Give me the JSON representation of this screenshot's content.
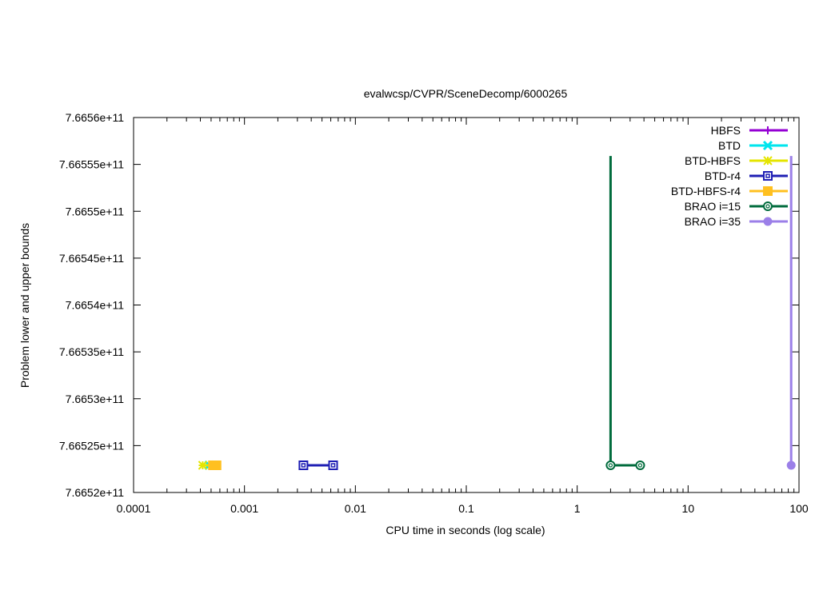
{
  "chart_data": {
    "type": "line",
    "title": "evalwcsp/CVPR/SceneDecomp/6000265",
    "xlabel": "CPU time in seconds (log scale)",
    "ylabel": "Problem lower and upper bounds",
    "xscale": "log",
    "xlim": [
      0.0001,
      100
    ],
    "ylim": [
      766520000000,
      766560000000
    ],
    "xticks": [
      {
        "value": 0.0001,
        "label": "0.0001"
      },
      {
        "value": 0.001,
        "label": "0.001"
      },
      {
        "value": 0.01,
        "label": "0.01"
      },
      {
        "value": 0.1,
        "label": "0.1"
      },
      {
        "value": 1,
        "label": "1"
      },
      {
        "value": 10,
        "label": "10"
      },
      {
        "value": 100,
        "label": "100"
      }
    ],
    "yticks": [
      {
        "value": 766520000000,
        "label": "7.6652e+11"
      },
      {
        "value": 766525000000,
        "label": "7.66525e+11"
      },
      {
        "value": 766530000000,
        "label": "7.6653e+11"
      },
      {
        "value": 766535000000,
        "label": "7.66535e+11"
      },
      {
        "value": 766540000000,
        "label": "7.6654e+11"
      },
      {
        "value": 766545000000,
        "label": "7.66545e+11"
      },
      {
        "value": 766550000000,
        "label": "7.6655e+11"
      },
      {
        "value": 766555000000,
        "label": "7.66555e+11"
      },
      {
        "value": 766560000000,
        "label": "7.6656e+11"
      }
    ],
    "legend_position": "top-right",
    "grid": false,
    "series": [
      {
        "name": "HBFS",
        "color": "#9400d3",
        "marker": "plus",
        "points": [
          [
            0.0034,
            766522900000
          ],
          [
            0.0063,
            766522900000
          ]
        ]
      },
      {
        "name": "BTD",
        "color": "#00e5ee",
        "marker": "cross",
        "points": [
          [
            0.00048,
            766522900000
          ],
          [
            0.00055,
            766522900000
          ]
        ]
      },
      {
        "name": "BTD-HBFS",
        "color": "#e5e500",
        "marker": "star",
        "points": [
          [
            0.00042,
            766522900000
          ],
          [
            0.00055,
            766522900000
          ]
        ]
      },
      {
        "name": "BTD-r4",
        "color": "#1f1fb4",
        "marker": "open-square",
        "points": [
          [
            0.0034,
            766522900000
          ],
          [
            0.0063,
            766522900000
          ]
        ]
      },
      {
        "name": "BTD-HBFS-r4",
        "color": "#ffc020",
        "marker": "filled-square",
        "points": [
          [
            0.00052,
            766522900000
          ],
          [
            0.00056,
            766522900000
          ]
        ]
      },
      {
        "name": "BRAO i=15",
        "color": "#006b3c",
        "marker": "open-circle",
        "points": [
          [
            2.0,
            766555900000
          ],
          [
            2.0,
            766522900000
          ],
          [
            3.7,
            766522900000
          ]
        ]
      },
      {
        "name": "BRAO i=35",
        "color": "#9b7fe8",
        "marker": "filled-circle",
        "points": [
          [
            85,
            766555900000
          ],
          [
            85,
            766522900000
          ]
        ]
      }
    ]
  }
}
